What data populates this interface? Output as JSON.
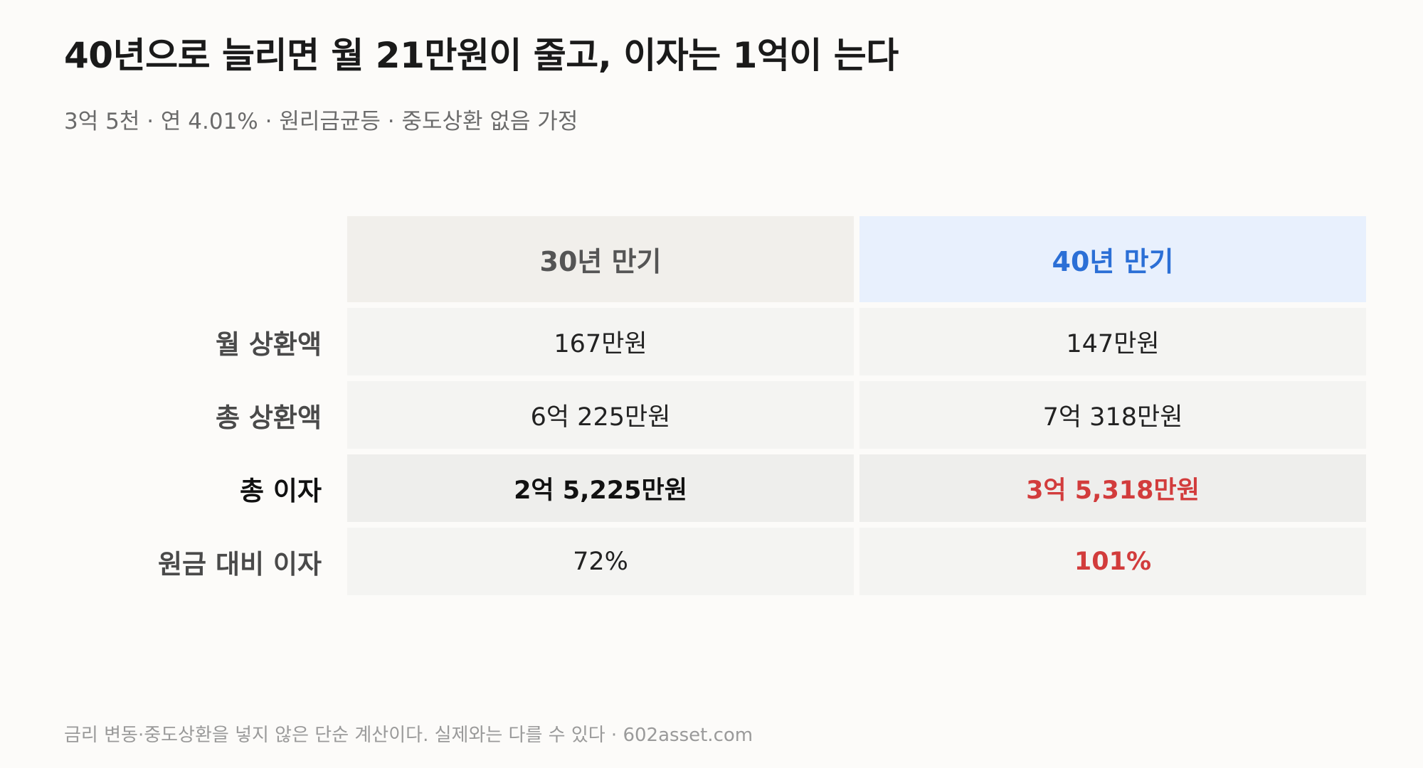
{
  "header": {
    "title": "40년으로 늘리면 월 21만원이 줄고, 이자는 1억이 는다",
    "subtitle": "3억 5천 · 연 4.01% · 원리금균등 · 중도상환 없음 가정"
  },
  "table": {
    "columns": [
      "30년 만기",
      "40년 만기"
    ],
    "rows": [
      {
        "label": "월 상환액",
        "values": [
          "167만원",
          "147만원"
        ]
      },
      {
        "label": "총 상환액",
        "values": [
          "6억 225만원",
          "7억 318만원"
        ]
      },
      {
        "label": "총 이자",
        "values": [
          "2억 5,225만원",
          "3억 5,318만원"
        ]
      },
      {
        "label": "원금 대비 이자",
        "values": [
          "72%",
          "101%"
        ]
      }
    ]
  },
  "footer": {
    "note": "금리 변동·중도상환을 넣지 않은 단순 계산이다. 실제와는 다를 수 있다 · 602asset.com"
  },
  "colors": {
    "accent_blue": "#2b6fd6",
    "highlight_red": "#d23c3c",
    "header_30_bg": "#f1efeb",
    "header_40_bg": "#e8f0fd"
  }
}
